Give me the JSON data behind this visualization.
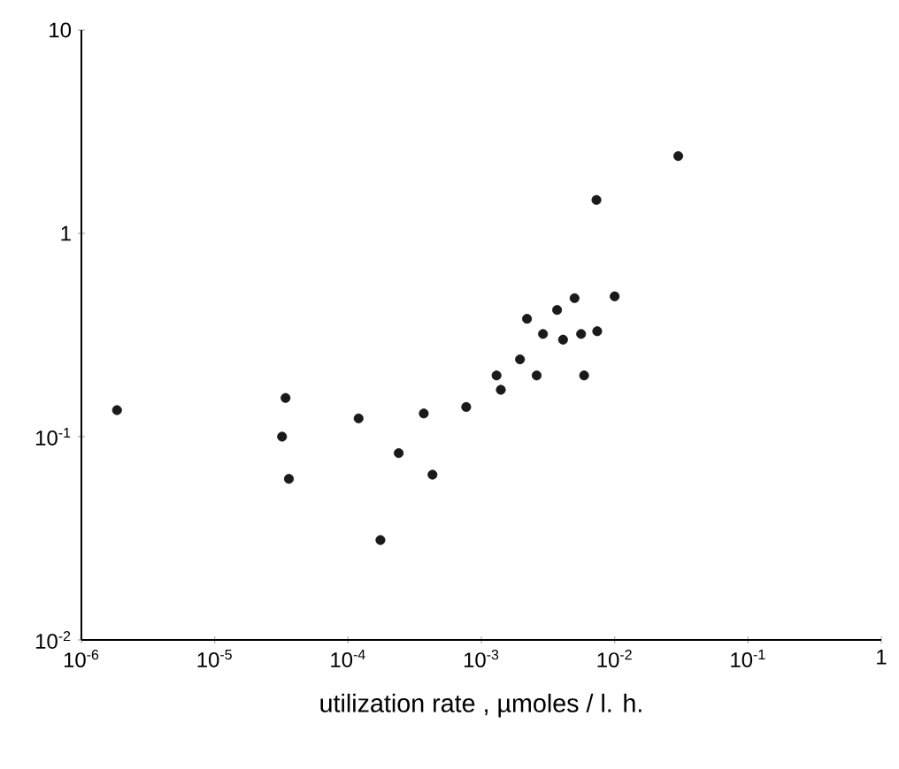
{
  "chart_data": {
    "type": "scatter",
    "xlabel": "utilization rate ,  µmoles / l. h.",
    "log": "xy",
    "marker": "circle",
    "grid": false,
    "xlim": [
      1e-06,
      1
    ],
    "ylim": [
      0.01,
      10
    ],
    "xticks": [
      {
        "value": 1e-06,
        "label": "10$^{-6}$"
      },
      {
        "value": 1e-05,
        "label": "10$^{-5}$"
      },
      {
        "value": 0.0001,
        "label": "10$^{-4}$"
      },
      {
        "value": 0.001,
        "label": "10$^{-3}$"
      },
      {
        "value": 0.01,
        "label": "10$^{-2}$"
      },
      {
        "value": 0.1,
        "label": "10$^{-1}$"
      },
      1
    ],
    "yticks": [
      {
        "value": 0.01,
        "label": "10$^{-2}$"
      },
      {
        "value": 0.1,
        "label": "10$^{-1}$"
      },
      1,
      10
    ],
    "series": [
      {
        "color": "#1a1a1a",
        "x": [
          1.85e-06,
          3.4e-05,
          3.2e-05,
          3.6e-05,
          0.00012,
          0.000175,
          0.00024,
          0.00037,
          0.00043,
          0.00077,
          0.0013,
          0.0014,
          0.00195,
          0.0022,
          0.0026,
          0.0029,
          0.0037,
          0.0041,
          0.005,
          0.0056,
          0.0059,
          0.0073,
          0.0074,
          0.01,
          0.03
        ],
        "values": [
          0.135,
          0.155,
          0.1,
          0.062,
          0.123,
          0.031,
          0.083,
          0.13,
          0.065,
          0.14,
          0.2,
          0.17,
          0.24,
          0.38,
          0.2,
          0.32,
          0.42,
          0.3,
          0.48,
          0.32,
          0.2,
          1.46,
          0.33,
          0.49,
          2.4
        ]
      }
    ]
  }
}
